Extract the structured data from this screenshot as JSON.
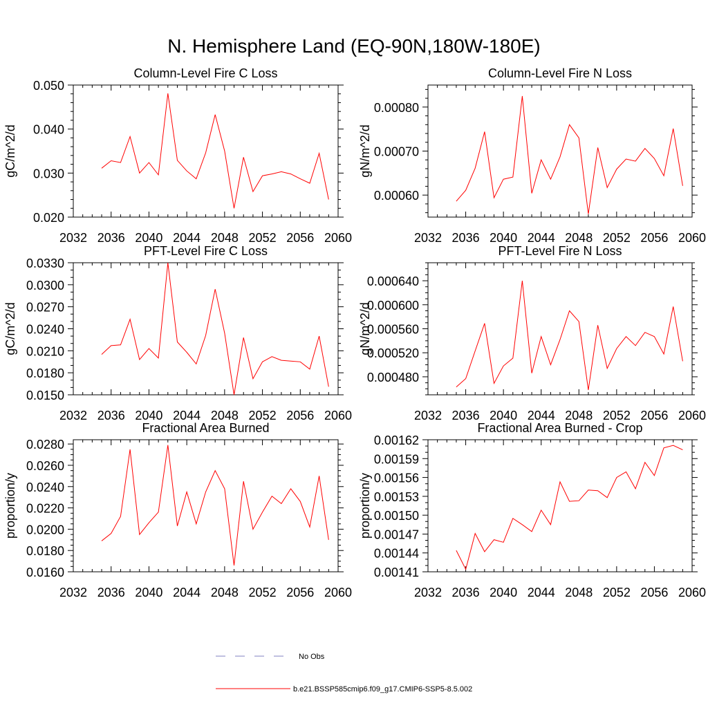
{
  "figure": {
    "title": "N. Hemisphere Land (EQ-90N,180W-180E)",
    "colors": {
      "model": "#ff0000",
      "obs": "#8080c0"
    },
    "legend": {
      "obs_label": "No Obs",
      "model_label": "b.e21.BSSP585cmip6.f09_g17.CMIP6-SSP5-8.5.002"
    }
  },
  "chart_data": [
    {
      "type": "line",
      "title": "Column-Level Fire C Loss",
      "ylabel": "gC/m^2/d",
      "xlim": [
        2032,
        2060
      ],
      "ylim": [
        0.02,
        0.05
      ],
      "xticks": [
        2032,
        2036,
        2040,
        2044,
        2048,
        2052,
        2056,
        2060
      ],
      "xtick_labels": [
        "2032",
        "2036",
        "2040",
        "2044",
        "2048",
        "2052",
        "2056",
        "2060"
      ],
      "yticks": [
        0.02,
        0.03,
        0.04,
        0.05
      ],
      "ytick_labels": [
        "0.020",
        "0.030",
        "0.040",
        "0.050"
      ],
      "yminor": 5,
      "x": [
        2035,
        2036,
        2037,
        2038,
        2039,
        2040,
        2041,
        2042,
        2043,
        2044,
        2045,
        2046,
        2047,
        2048,
        2049,
        2050,
        2051,
        2052,
        2053,
        2054,
        2055,
        2056,
        2057,
        2058,
        2059
      ],
      "values": [
        0.0311,
        0.0328,
        0.0324,
        0.0383,
        0.03,
        0.0324,
        0.0296,
        0.0481,
        0.0329,
        0.0305,
        0.0287,
        0.0346,
        0.0433,
        0.035,
        0.022,
        0.0336,
        0.0258,
        0.0294,
        0.0298,
        0.0303,
        0.0298,
        0.0287,
        0.0277,
        0.0345,
        0.024
      ]
    },
    {
      "type": "line",
      "title": "Column-Level Fire N Loss",
      "ylabel": "gN/m^2/d",
      "xlim": [
        2032,
        2060
      ],
      "ylim": [
        0.00055,
        0.00085
      ],
      "xticks": [
        2032,
        2036,
        2040,
        2044,
        2048,
        2052,
        2056,
        2060
      ],
      "xtick_labels": [
        "2032",
        "2036",
        "2040",
        "2044",
        "2048",
        "2052",
        "2056",
        "2060"
      ],
      "yticks": [
        0.0006,
        0.0007,
        0.0008
      ],
      "ytick_labels": [
        "0.00060",
        "0.00070",
        "0.00080"
      ],
      "yminor": 5,
      "x": [
        2035,
        2036,
        2037,
        2038,
        2039,
        2040,
        2041,
        2042,
        2043,
        2044,
        2045,
        2046,
        2047,
        2048,
        2049,
        2050,
        2051,
        2052,
        2053,
        2054,
        2055,
        2056,
        2057,
        2058,
        2059
      ],
      "values": [
        0.000586,
        0.000611,
        0.000661,
        0.000744,
        0.000594,
        0.000636,
        0.000641,
        0.000825,
        0.000604,
        0.00068,
        0.000636,
        0.000687,
        0.00076,
        0.00073,
        0.000557,
        0.000708,
        0.000617,
        0.000659,
        0.000682,
        0.000677,
        0.000706,
        0.000683,
        0.000644,
        0.000751,
        0.000621
      ]
    },
    {
      "type": "line",
      "title": "PFT-Level Fire C Loss",
      "ylabel": "gC/m^2/d",
      "xlim": [
        2032,
        2060
      ],
      "ylim": [
        0.015,
        0.033
      ],
      "xticks": [
        2032,
        2036,
        2040,
        2044,
        2048,
        2052,
        2056,
        2060
      ],
      "xtick_labels": [
        "2032",
        "2036",
        "2040",
        "2044",
        "2048",
        "2052",
        "2056",
        "2060"
      ],
      "yticks": [
        0.015,
        0.018,
        0.021,
        0.024,
        0.027,
        0.03,
        0.033
      ],
      "ytick_labels": [
        "0.0150",
        "0.0180",
        "0.0210",
        "0.0240",
        "0.0270",
        "0.0300",
        "0.0330"
      ],
      "yminor": 3,
      "x": [
        2035,
        2036,
        2037,
        2038,
        2039,
        2040,
        2041,
        2042,
        2043,
        2044,
        2045,
        2046,
        2047,
        2048,
        2049,
        2050,
        2051,
        2052,
        2053,
        2054,
        2055,
        2056,
        2057,
        2058,
        2059
      ],
      "values": [
        0.0205,
        0.0217,
        0.0218,
        0.0253,
        0.0198,
        0.0213,
        0.02,
        0.033,
        0.0222,
        0.0208,
        0.0192,
        0.0231,
        0.0294,
        0.0234,
        0.015,
        0.0228,
        0.0172,
        0.0195,
        0.0202,
        0.0197,
        0.0196,
        0.0195,
        0.0185,
        0.023,
        0.0161
      ]
    },
    {
      "type": "line",
      "title": "PFT-Level Fire N Loss",
      "ylabel": "gN/m^2/d",
      "xlim": [
        2032,
        2060
      ],
      "ylim": [
        0.00045,
        0.00067
      ],
      "xticks": [
        2032,
        2036,
        2040,
        2044,
        2048,
        2052,
        2056,
        2060
      ],
      "xtick_labels": [
        "2032",
        "2036",
        "2040",
        "2044",
        "2048",
        "2052",
        "2056",
        "2060"
      ],
      "yticks": [
        0.00048,
        0.00052,
        0.00056,
        0.0006,
        0.00064
      ],
      "ytick_labels": [
        "0.000480",
        "0.000520",
        "0.000560",
        "0.000600",
        "0.000640"
      ],
      "yminor": 4,
      "x": [
        2035,
        2036,
        2037,
        2038,
        2039,
        2040,
        2041,
        2042,
        2043,
        2044,
        2045,
        2046,
        2047,
        2048,
        2049,
        2050,
        2051,
        2052,
        2053,
        2054,
        2055,
        2056,
        2057,
        2058,
        2059
      ],
      "values": [
        0.000463,
        0.000477,
        0.000523,
        0.000569,
        0.000469,
        0.000498,
        0.000511,
        0.00064,
        0.000486,
        0.000547,
        0.0005,
        0.000542,
        0.00059,
        0.000572,
        0.000458,
        0.000566,
        0.000494,
        0.000527,
        0.000547,
        0.000532,
        0.000554,
        0.000547,
        0.000518,
        0.000597,
        0.000506
      ]
    },
    {
      "type": "line",
      "title": "Fractional Area Burned",
      "ylabel": "proportion/y",
      "xlim": [
        2032,
        2060
      ],
      "ylim": [
        0.016,
        0.0284
      ],
      "xticks": [
        2032,
        2036,
        2040,
        2044,
        2048,
        2052,
        2056,
        2060
      ],
      "xtick_labels": [
        "2032",
        "2036",
        "2040",
        "2044",
        "2048",
        "2052",
        "2056",
        "2060"
      ],
      "yticks": [
        0.016,
        0.018,
        0.02,
        0.022,
        0.024,
        0.026,
        0.028
      ],
      "ytick_labels": [
        "0.0160",
        "0.0180",
        "0.0200",
        "0.0220",
        "0.0240",
        "0.0260",
        "0.0280"
      ],
      "yminor": 4,
      "x": [
        2035,
        2036,
        2037,
        2038,
        2039,
        2040,
        2041,
        2042,
        2043,
        2044,
        2045,
        2046,
        2047,
        2048,
        2049,
        2050,
        2051,
        2052,
        2053,
        2054,
        2055,
        2056,
        2057,
        2058,
        2059
      ],
      "values": [
        0.0189,
        0.0196,
        0.0212,
        0.0275,
        0.0195,
        0.0206,
        0.0216,
        0.0279,
        0.0203,
        0.0235,
        0.0205,
        0.0235,
        0.0255,
        0.0238,
        0.0166,
        0.0245,
        0.02,
        0.0216,
        0.0231,
        0.0224,
        0.0238,
        0.0226,
        0.0202,
        0.025,
        0.019
      ]
    },
    {
      "type": "line",
      "title": "Fractional Area Burned - Crop",
      "ylabel": "proportion/y",
      "xlim": [
        2032,
        2060
      ],
      "ylim": [
        0.00141,
        0.00162
      ],
      "xticks": [
        2032,
        2036,
        2040,
        2044,
        2048,
        2052,
        2056,
        2060
      ],
      "xtick_labels": [
        "2032",
        "2036",
        "2040",
        "2044",
        "2048",
        "2052",
        "2056",
        "2060"
      ],
      "yticks": [
        0.00141,
        0.00144,
        0.00147,
        0.0015,
        0.00153,
        0.00156,
        0.00159,
        0.00162
      ],
      "ytick_labels": [
        "0.00141",
        "0.00144",
        "0.00147",
        "0.00150",
        "0.00153",
        "0.00156",
        "0.00159",
        "0.00162"
      ],
      "yminor": 3,
      "x": [
        2035,
        2036,
        2037,
        2038,
        2039,
        2040,
        2041,
        2042,
        2043,
        2044,
        2045,
        2046,
        2047,
        2048,
        2049,
        2050,
        2051,
        2052,
        2053,
        2054,
        2055,
        2056,
        2057,
        2058,
        2059
      ],
      "values": [
        0.001444,
        0.001414,
        0.001471,
        0.001442,
        0.001461,
        0.001457,
        0.001495,
        0.001485,
        0.001474,
        0.001508,
        0.001485,
        0.001553,
        0.001522,
        0.001523,
        0.00154,
        0.001539,
        0.001528,
        0.00156,
        0.001569,
        0.001542,
        0.001584,
        0.001563,
        0.001607,
        0.001611,
        0.001604
      ]
    }
  ]
}
